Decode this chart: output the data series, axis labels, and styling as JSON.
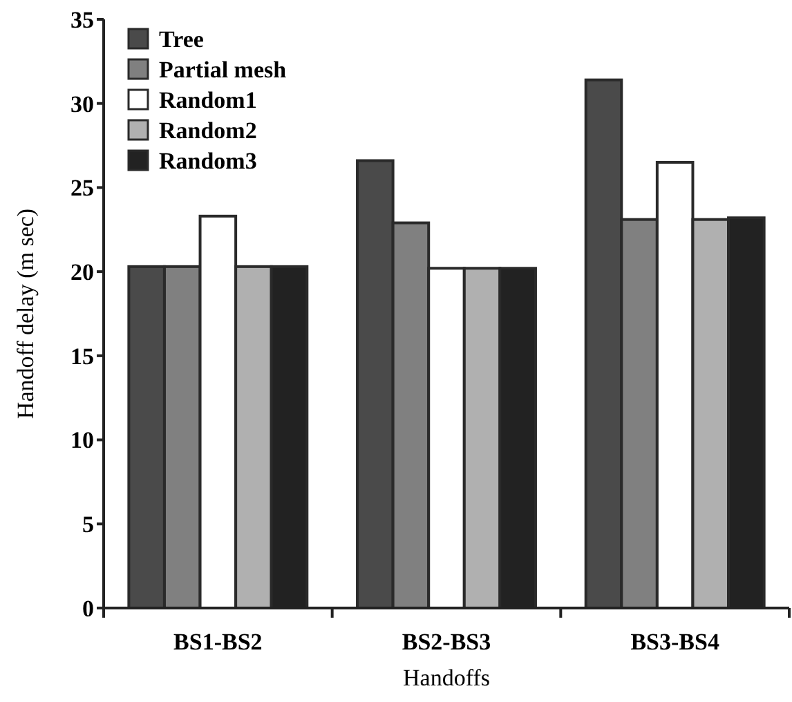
{
  "chart_data": {
    "type": "bar",
    "xlabel": "Handoffs",
    "ylabel": "Handoff delay (m sec)",
    "categories": [
      "BS1-BS2",
      "BS2-BS3",
      "BS3-BS4"
    ],
    "series": [
      {
        "name": "Tree",
        "color": "#4a4a4a",
        "values": [
          20.3,
          26.6,
          31.4
        ]
      },
      {
        "name": "Partial mesh",
        "color": "#808080",
        "values": [
          20.3,
          22.9,
          23.1
        ]
      },
      {
        "name": "Random1",
        "color": "#ffffff",
        "values": [
          23.3,
          20.2,
          26.5
        ]
      },
      {
        "name": "Random2",
        "color": "#b0b0b0",
        "values": [
          20.3,
          20.2,
          23.1
        ]
      },
      {
        "name": "Random3",
        "color": "#222222",
        "values": [
          20.3,
          20.2,
          23.2
        ]
      }
    ],
    "ylim": [
      0,
      35
    ],
    "yticks": [
      0,
      5,
      10,
      15,
      20,
      25,
      30,
      35
    ],
    "grid": false,
    "legend": "top left"
  }
}
